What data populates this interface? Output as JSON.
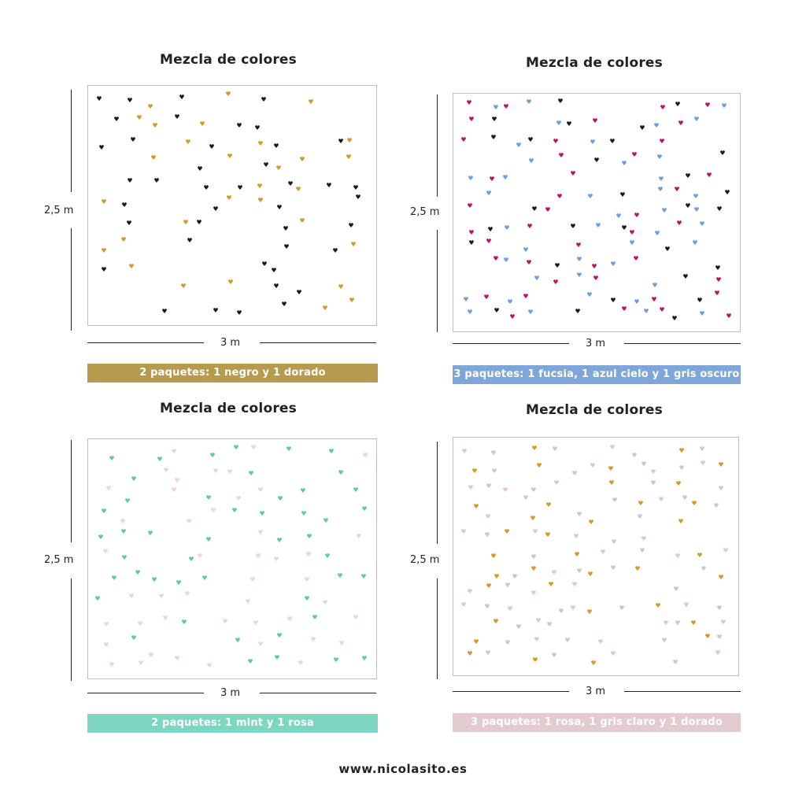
{
  "panels": [
    {
      "title": "Mezcla de colores",
      "height_label": "2,5 m",
      "width_label": "3 m",
      "banner": "2 paquetes: 1 negro y 1 dorado",
      "banner_color": "#b79a4e",
      "heart_colors": [
        "#1a1a1a",
        "#d19a2b"
      ],
      "hearts_icon": "heart-icon"
    },
    {
      "title": "Mezcla de colores",
      "height_label": "2,5 m",
      "width_label": "3 m",
      "banner": "3 paquetes: 1 fucsia, 1 azul cielo y 1 gris oscuro",
      "banner_color": "#7fa6d8",
      "heart_colors": [
        "#b8145f",
        "#6d9fe0",
        "#1a1a1a"
      ],
      "hearts_icon": "heart-icon"
    },
    {
      "title": "Mezcla de colores",
      "height_label": "2,5 m",
      "width_label": "3 m",
      "banner": "2 paquetes: 1 mint y 1 rosa",
      "banner_color": "#7fd6c0",
      "heart_colors": [
        "#5ccaa9",
        "#efd3d8"
      ],
      "hearts_icon": "heart-icon"
    },
    {
      "title": "Mezcla de colores",
      "height_label": "2,5 m",
      "width_label": "3 m",
      "banner": "3 paquetes: 1 rosa, 1 gris claro y 1 dorado",
      "banner_color": "#e3ccd0",
      "heart_colors": [
        "#e8c4cc",
        "#c9c9c9",
        "#d19a2b"
      ],
      "hearts_icon": "heart-icon"
    }
  ],
  "footer": "www.nicolasito.es"
}
